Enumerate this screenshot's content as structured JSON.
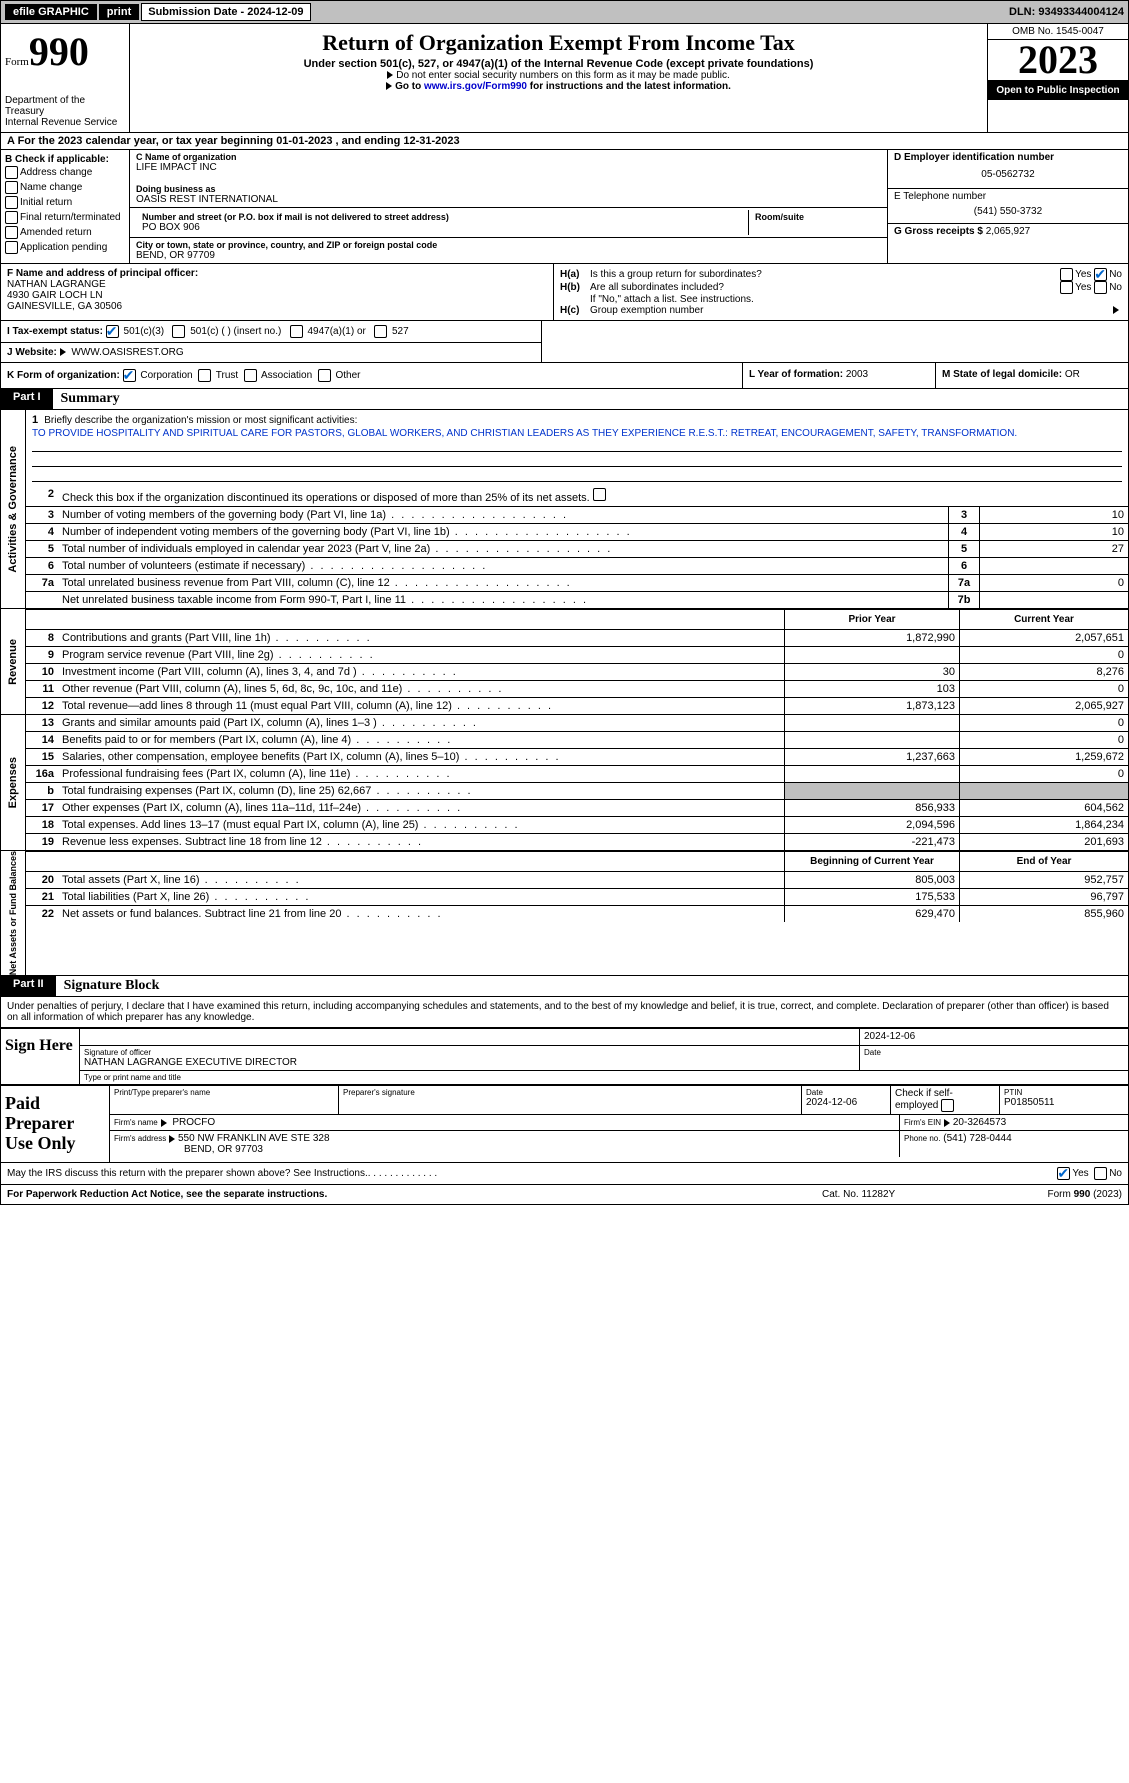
{
  "topbar": {
    "efile_label": "efile GRAPHIC",
    "print_label": "print",
    "submission_label": "Submission Date - 2024-12-09",
    "dln_label": "DLN: 93493344004124"
  },
  "header": {
    "form_word": "Form",
    "form_number": "990",
    "dept1": "Department of the Treasury",
    "dept2": "Internal Revenue Service",
    "title": "Return of Organization Exempt From Income Tax",
    "subtitle1": "Under section 501(c), 527, or 4947(a)(1) of the Internal Revenue Code (except private foundations)",
    "subtitle2": "Do not enter social security numbers on this form as it may be made public.",
    "subtitle3_prefix": "Go to ",
    "subtitle3_link": "www.irs.gov/Form990",
    "subtitle3_suffix": " for instructions and the latest information.",
    "omb": "OMB No. 1545-0047",
    "year": "2023",
    "open": "Open to Public Inspection"
  },
  "section_a": {
    "text": "A For the 2023 calendar year, or tax year beginning 01-01-2023   , and ending 12-31-2023"
  },
  "box_b": {
    "header": "B Check if applicable:",
    "opts": [
      "Address change",
      "Name change",
      "Initial return",
      "Final return/terminated",
      "Amended return",
      "Application pending"
    ]
  },
  "box_c": {
    "name_label": "C Name of organization",
    "name_value": "LIFE IMPACT INC",
    "dba_label": "Doing business as",
    "dba_value": "OASIS REST INTERNATIONAL",
    "street_label": "Number and street (or P.O. box if mail is not delivered to street address)",
    "street_value": "PO BOX 906",
    "room_label": "Room/suite",
    "room_value": "",
    "city_label": "City or town, state or province, country, and ZIP or foreign postal code",
    "city_value": "BEND, OR  97709"
  },
  "box_d": {
    "ein_label": "D Employer identification number",
    "ein_value": "05-0562732",
    "phone_label": "E Telephone number",
    "phone_value": "(541) 550-3732",
    "gross_label": "G Gross receipts $",
    "gross_value": "2,065,927"
  },
  "box_f": {
    "label": "F Name and address of principal officer:",
    "line1": "NATHAN LAGRANGE",
    "line2": "4930 GAIR LOCH LN",
    "line3": "GAINESVILLE, GA  30506"
  },
  "box_h": {
    "a_label": "Is this a group return for subordinates?",
    "a_prefix": "H(a)",
    "b_label": "Are all subordinates included?",
    "b_prefix": "H(b)",
    "b_note": "If \"No,\" attach a list. See instructions.",
    "c_label": "Group exemption number",
    "c_prefix": "H(c)",
    "yes": "Yes",
    "no": "No"
  },
  "box_i": {
    "label": "I    Tax-exempt status:",
    "opt1": "501(c)(3)",
    "opt2": "501(c) (  ) (insert no.)",
    "opt3": "4947(a)(1) or",
    "opt4": "527"
  },
  "box_j": {
    "label": "J    Website:",
    "value": "WWW.OASISREST.ORG"
  },
  "box_k": {
    "label": "K Form of organization:",
    "opts": [
      "Corporation",
      "Trust",
      "Association",
      "Other"
    ]
  },
  "box_l": {
    "label": "L Year of formation:",
    "value": "2003"
  },
  "box_m": {
    "label": "M State of legal domicile:",
    "value": "OR"
  },
  "part1": {
    "tab": "Part I",
    "title": "Summary",
    "vertical_labels": {
      "gov": "Activities & Governance",
      "rev": "Revenue",
      "exp": "Expenses",
      "net": "Net Assets or Fund Balances"
    },
    "q1_label": "Briefly describe the organization's mission or most significant activities:",
    "q1_answer": "TO PROVIDE HOSPITALITY AND SPIRITUAL CARE FOR PASTORS, GLOBAL WORKERS, AND CHRISTIAN LEADERS AS THEY EXPERIENCE R.E.S.T.: RETREAT, ENCOURAGEMENT, SAFETY, TRANSFORMATION.",
    "q2_text": "Check this box      if the organization discontinued its operations or disposed of more than 25% of its net assets.",
    "lines_gov": [
      {
        "n": "3",
        "desc": "Number of voting members of the governing body (Part VI, line 1a)",
        "box": "3",
        "val": "10"
      },
      {
        "n": "4",
        "desc": "Number of independent voting members of the governing body (Part VI, line 1b)",
        "box": "4",
        "val": "10"
      },
      {
        "n": "5",
        "desc": "Total number of individuals employed in calendar year 2023 (Part V, line 2a)",
        "box": "5",
        "val": "27"
      },
      {
        "n": "6",
        "desc": "Total number of volunteers (estimate if necessary)",
        "box": "6",
        "val": ""
      },
      {
        "n": "7a",
        "desc": "Total unrelated business revenue from Part VIII, column (C), line 12",
        "box": "7a",
        "val": "0"
      },
      {
        "n": "",
        "desc": "Net unrelated business taxable income from Form 990-T, Part I, line 11",
        "box": "7b",
        "val": ""
      }
    ],
    "year_header": {
      "prior": "Prior Year",
      "current": "Current Year"
    },
    "lines_rev": [
      {
        "n": "8",
        "desc": "Contributions and grants (Part VIII, line 1h)",
        "c1": "1,872,990",
        "c2": "2,057,651"
      },
      {
        "n": "9",
        "desc": "Program service revenue (Part VIII, line 2g)",
        "c1": "",
        "c2": "0"
      },
      {
        "n": "10",
        "desc": "Investment income (Part VIII, column (A), lines 3, 4, and 7d )",
        "c1": "30",
        "c2": "8,276"
      },
      {
        "n": "11",
        "desc": "Other revenue (Part VIII, column (A), lines 5, 6d, 8c, 9c, 10c, and 11e)",
        "c1": "103",
        "c2": "0"
      },
      {
        "n": "12",
        "desc": "Total revenue—add lines 8 through 11 (must equal Part VIII, column (A), line 12)",
        "c1": "1,873,123",
        "c2": "2,065,927"
      }
    ],
    "lines_exp": [
      {
        "n": "13",
        "desc": "Grants and similar amounts paid (Part IX, column (A), lines 1–3 )",
        "c1": "",
        "c2": "0"
      },
      {
        "n": "14",
        "desc": "Benefits paid to or for members (Part IX, column (A), line 4)",
        "c1": "",
        "c2": "0"
      },
      {
        "n": "15",
        "desc": "Salaries, other compensation, employee benefits (Part IX, column (A), lines 5–10)",
        "c1": "1,237,663",
        "c2": "1,259,672"
      },
      {
        "n": "16a",
        "desc": "Professional fundraising fees (Part IX, column (A), line 11e)",
        "c1": "",
        "c2": "0"
      },
      {
        "n": "b",
        "desc": "Total fundraising expenses (Part IX, column (D), line 25) 62,667",
        "c1": "shade",
        "c2": "shade"
      },
      {
        "n": "17",
        "desc": "Other expenses (Part IX, column (A), lines 11a–11d, 11f–24e)",
        "c1": "856,933",
        "c2": "604,562"
      },
      {
        "n": "18",
        "desc": "Total expenses. Add lines 13–17 (must equal Part IX, column (A), line 25)",
        "c1": "2,094,596",
        "c2": "1,864,234"
      },
      {
        "n": "19",
        "desc": "Revenue less expenses. Subtract line 18 from line 12",
        "c1": "-221,473",
        "c2": "201,693"
      }
    ],
    "net_header": {
      "begin": "Beginning of Current Year",
      "end": "End of Year"
    },
    "lines_net": [
      {
        "n": "20",
        "desc": "Total assets (Part X, line 16)",
        "c1": "805,003",
        "c2": "952,757"
      },
      {
        "n": "21",
        "desc": "Total liabilities (Part X, line 26)",
        "c1": "175,533",
        "c2": "96,797"
      },
      {
        "n": "22",
        "desc": "Net assets or fund balances. Subtract line 21 from line 20",
        "c1": "629,470",
        "c2": "855,960"
      }
    ]
  },
  "part2": {
    "tab": "Part II",
    "title": "Signature Block",
    "declaration": "Under penalties of perjury, I declare that I have examined this return, including accompanying schedules and statements, and to the best of my knowledge and belief, it is true, correct, and complete. Declaration of preparer (other than officer) is based on all information of which preparer has any knowledge.",
    "sign_here": "Sign Here",
    "sig_of_officer": "Signature of officer",
    "officer_name_title": "NATHAN LAGRANGE  EXECUTIVE DIRECTOR",
    "type_print": "Type or print name and title",
    "date_label": "Date",
    "date1": "2024-12-06",
    "paid": "Paid Preparer Use Only",
    "prep_name_label": "Print/Type preparer's name",
    "prep_name": "",
    "prep_sig_label": "Preparer's signature",
    "prep_date": "2024-12-06",
    "check_if": "Check        if self-employed",
    "ptin_label": "PTIN",
    "ptin": "P01850511",
    "firm_name_label": "Firm's name",
    "firm_name": "PROCFO",
    "firm_ein_label": "Firm's EIN",
    "firm_ein": "20-3264573",
    "firm_addr_label": "Firm's address",
    "firm_addr1": "550 NW FRANKLIN AVE STE 328",
    "firm_addr2": "BEND, OR  97703",
    "phone_label": "Phone no.",
    "phone": "(541) 728-0444",
    "discuss": "May the IRS discuss this return with the preparer shown above? See Instructions.",
    "yes": "Yes",
    "no": "No"
  },
  "footer": {
    "left": "For Paperwork Reduction Act Notice, see the separate instructions.",
    "center": "Cat. No. 11282Y",
    "right": "Form 990 (2023)"
  }
}
